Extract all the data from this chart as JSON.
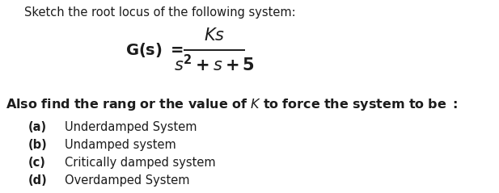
{
  "title_line": "Sketch the root locus of the following system:",
  "items": [
    {
      "label": "(a)",
      "text": "Underdamped System"
    },
    {
      "label": "(b)",
      "text": "Undamped system"
    },
    {
      "label": "(c)",
      "text": "Critically damped system"
    },
    {
      "label": "(d)",
      "text": "Overdamped System"
    }
  ],
  "background_color": "#ffffff",
  "text_color": "#1c1c1c",
  "font_size_title": 10.5,
  "font_size_formula": 14,
  "font_size_also": 11.5,
  "font_size_items": 10.5,
  "fig_width": 6.17,
  "fig_height": 2.39,
  "dpi": 100
}
